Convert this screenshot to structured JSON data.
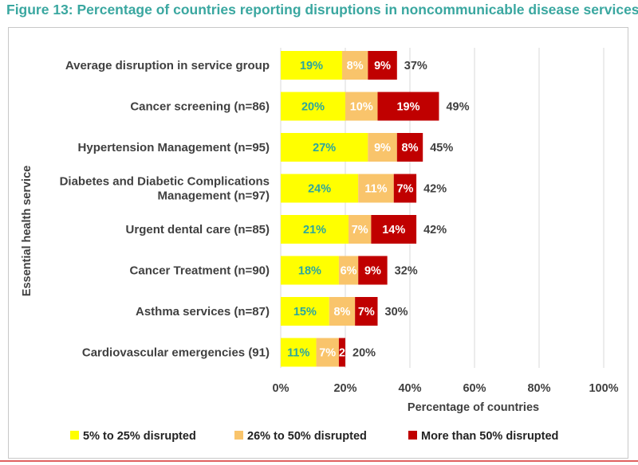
{
  "title": "Figure 13: Percentage of countries reporting disruptions in noncommunicable disease services",
  "chart_data": {
    "type": "bar",
    "orientation": "horizontal",
    "stacked": true,
    "categories": [
      [
        "Average disruption in service group"
      ],
      [
        "Cancer screening (n=86)"
      ],
      [
        "Hypertension Management (n=95)"
      ],
      [
        "Diabetes and Diabetic Complications",
        "Management (n=97)"
      ],
      [
        "Urgent dental care (n=85)"
      ],
      [
        "Cancer Treatment (n=90)"
      ],
      [
        "Asthma services (n=87)"
      ],
      [
        "Cardiovascular emergencies (91)"
      ]
    ],
    "series": [
      {
        "name": "5% to 25% disrupted",
        "color": "#ffff00",
        "label_color": "#2aa6a0",
        "values": [
          19,
          20,
          27,
          24,
          21,
          18,
          15,
          11
        ],
        "labels": [
          "19%",
          "20%",
          "27%",
          "24%",
          "21%",
          "18%",
          "15%",
          "11%"
        ]
      },
      {
        "name": "26% to 50% disrupted",
        "color": "#f9c46b",
        "label_color": "#ffffff",
        "values": [
          8,
          10,
          9,
          11,
          7,
          6,
          8,
          7
        ],
        "labels": [
          "8%",
          "10%",
          "9%",
          "11%",
          "7%",
          "6%",
          "8%",
          "7%"
        ]
      },
      {
        "name": "More than 50% disrupted",
        "color": "#c00000",
        "label_color": "#ffffff",
        "values": [
          9,
          19,
          8,
          7,
          14,
          9,
          7,
          2
        ],
        "labels": [
          "9%",
          "19%",
          "8%",
          "7%",
          "14%",
          "9%",
          "7%",
          "2"
        ]
      }
    ],
    "totals": [
      "37%",
      "49%",
      "45%",
      "42%",
      "42%",
      "32%",
      "30%",
      "20%"
    ],
    "xlim": [
      0,
      100
    ],
    "x_ticks": [
      "0%",
      "20%",
      "40%",
      "60%",
      "80%",
      "100%"
    ],
    "xlabel": "Percentage of countries",
    "ylabel": "Essential health service",
    "legend_position": "bottom",
    "grid": true
  }
}
